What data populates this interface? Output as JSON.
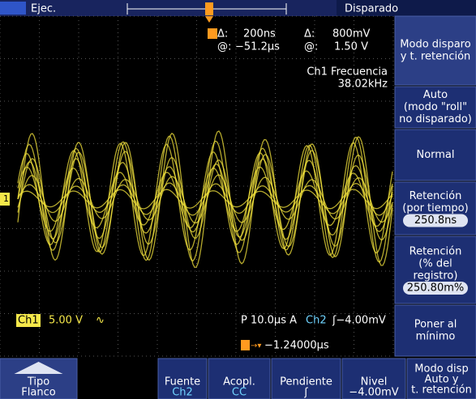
{
  "status": {
    "run": "Ejec.",
    "trigger_state": "Disparado"
  },
  "cursor": {
    "delta_t_label": "Δ:",
    "delta_t": "200ns",
    "delta_v_label": "Δ:",
    "delta_v": "800mV",
    "at_t_label": "@:",
    "at_t": "−51.2µs",
    "at_v_label": "@:",
    "at_v": "1.50 V"
  },
  "measurement": {
    "name": "Ch1 Frecuencia",
    "value": "38.02kHz"
  },
  "channel_marker": "1",
  "readout": {
    "channel": "Ch1",
    "scale": "5.00 V",
    "coupling_symbol": "∿",
    "timebase": "P 10.0µs A",
    "trigger_source": "Ch2",
    "trigger_level": "ʃ−4.00mV",
    "position": "−1.24000µs"
  },
  "side_menu": [
    {
      "lines": [
        "Modo disparo",
        "y t. retención"
      ]
    },
    {
      "lines": [
        "Auto",
        "(modo \"roll\"",
        "no disparado)"
      ]
    },
    {
      "lines": [
        "Normal"
      ]
    },
    {
      "lines": [
        "Retención",
        "(por tiempo)"
      ],
      "value": "250.8ns"
    },
    {
      "lines": [
        "Retención",
        "(% del",
        "registro)"
      ],
      "value": "250.80m%"
    },
    {
      "lines": [
        "Poner al",
        "mínimo"
      ]
    }
  ],
  "bottom_menu": [
    {
      "lines": [
        "Tipo",
        "Flanco"
      ]
    },
    {
      "lines": [
        "Fuente",
        "Ch2"
      ]
    },
    {
      "lines": [
        "Acopl.",
        "CC"
      ]
    },
    {
      "lines": [
        "Pendiente",
        "ʃ"
      ]
    },
    {
      "lines": [
        "Nivel",
        "−4.00mV"
      ]
    },
    {
      "lines": [
        "Modo disp",
        "Auto y",
        "t. retención"
      ]
    }
  ]
}
